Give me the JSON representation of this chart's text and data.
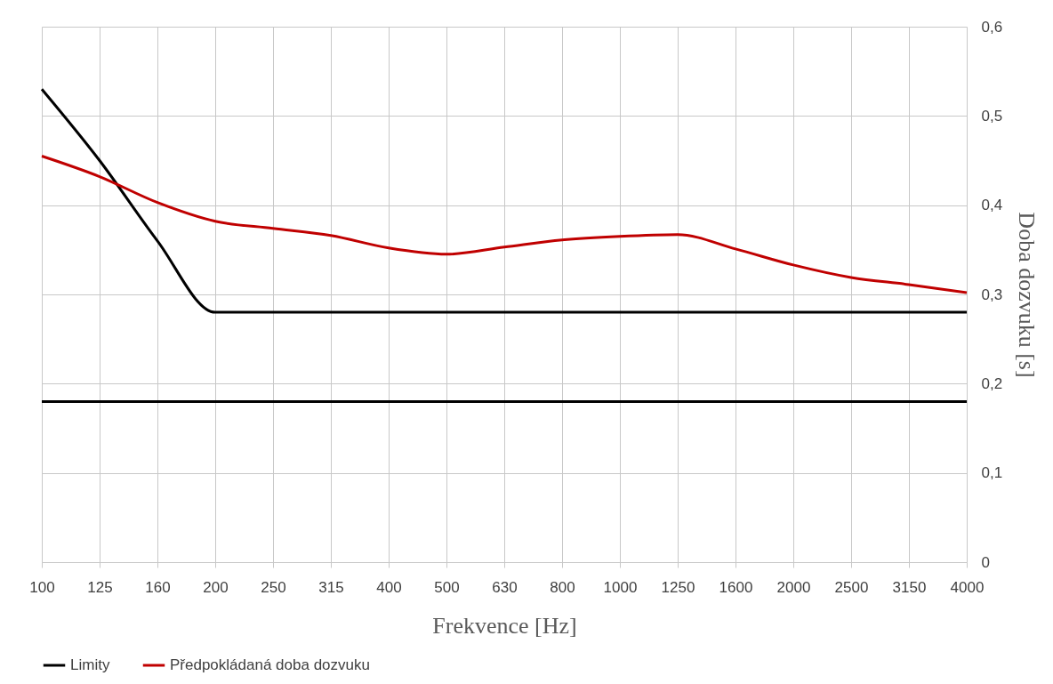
{
  "chart_data": {
    "type": "line",
    "xlabel": "Frekvence [Hz]",
    "ylabel": "Doba dozvuku [s]",
    "categories": [
      "100",
      "125",
      "160",
      "200",
      "250",
      "315",
      "400",
      "500",
      "630",
      "800",
      "1000",
      "1250",
      "1600",
      "2000",
      "2500",
      "3150",
      "4000"
    ],
    "series": [
      {
        "name": "Limity",
        "color": "#000000",
        "values": [
          0.53,
          0.45,
          0.36,
          0.28,
          0.28,
          0.28,
          0.28,
          0.28,
          0.28,
          0.28,
          0.28,
          0.28,
          0.28,
          0.28,
          0.28,
          0.28,
          0.28
        ]
      },
      {
        "color": "#000000",
        "values": [
          0.18,
          0.18,
          0.18,
          0.18,
          0.18,
          0.18,
          0.18,
          0.18,
          0.18,
          0.18,
          0.18,
          0.18,
          0.18,
          0.18,
          0.18,
          0.18,
          0.18
        ]
      },
      {
        "name": "Předpokládaná doba dozvuku",
        "color": "#c00000",
        "values": [
          0.455,
          0.432,
          0.403,
          0.382,
          0.374,
          0.366,
          0.352,
          0.345,
          0.353,
          0.361,
          0.365,
          0.367,
          0.351,
          0.333,
          0.319,
          0.311,
          0.302
        ]
      }
    ],
    "ylim": [
      0,
      0.6
    ],
    "yticks": [
      {
        "value": 0,
        "label": "0"
      },
      {
        "value": 0.1,
        "label": "0,1"
      },
      {
        "value": 0.2,
        "label": "0,2"
      },
      {
        "value": 0.3,
        "label": "0,3"
      },
      {
        "value": 0.4,
        "label": "0,4"
      },
      {
        "value": 0.5,
        "label": "0,5"
      },
      {
        "value": 0.6,
        "label": "0,6"
      }
    ],
    "grid": true,
    "legend": "bottom"
  }
}
